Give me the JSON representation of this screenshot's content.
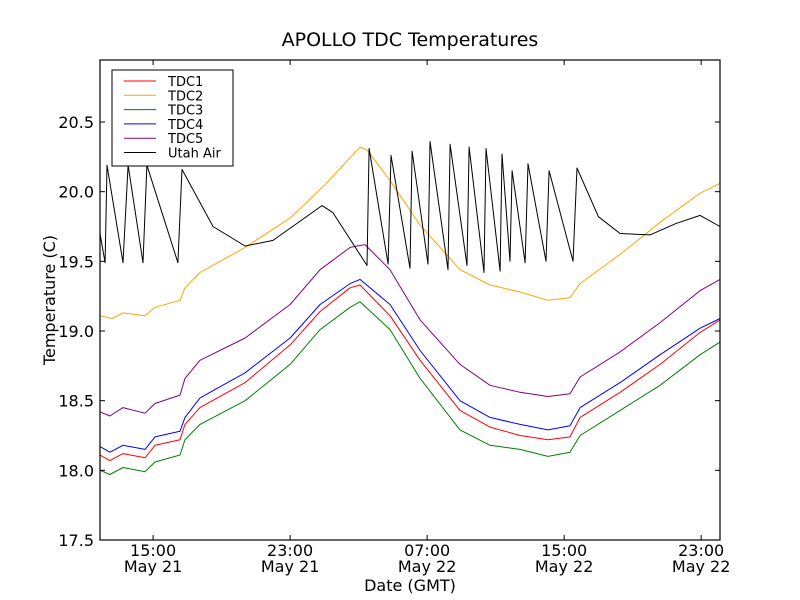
{
  "chart_data": {
    "type": "line",
    "title": "APOLLO TDC Temperatures",
    "xlabel": "Date (GMT)",
    "ylabel": "Temperature (C)",
    "x_units": "hours since 00:00 May 21 GMT",
    "xlim": [
      11.9,
      48.1
    ],
    "ylim": [
      17.5,
      20.95
    ],
    "grid": false,
    "legend_position": "top-left",
    "xticks": [
      {
        "value": 15,
        "line1": "15:00",
        "line2": "May 21"
      },
      {
        "value": 23,
        "line1": "23:00",
        "line2": "May 21"
      },
      {
        "value": 31,
        "line1": "07:00",
        "line2": "May 22"
      },
      {
        "value": 39,
        "line1": "15:00",
        "line2": "May 22"
      },
      {
        "value": 47,
        "line1": "23:00",
        "line2": "May 22"
      }
    ],
    "yticks": [
      {
        "value": 17.5,
        "label": "17.5"
      },
      {
        "value": 18.0,
        "label": "18.0"
      },
      {
        "value": 18.5,
        "label": "18.5"
      },
      {
        "value": 19.0,
        "label": "19.0"
      },
      {
        "value": 19.5,
        "label": "19.5"
      },
      {
        "value": 20.0,
        "label": "20.0"
      },
      {
        "value": 20.5,
        "label": "20.5"
      }
    ],
    "series": [
      {
        "name": "TDC1",
        "color": "#ff0000",
        "points": [
          [
            11.9,
            18.11
          ],
          [
            12.48,
            18.07
          ],
          [
            13.24,
            18.12
          ],
          [
            14.53,
            18.09
          ],
          [
            15.11,
            18.18
          ],
          [
            16.57,
            18.22
          ],
          [
            16.86,
            18.33
          ],
          [
            17.74,
            18.45
          ],
          [
            20.37,
            18.63
          ],
          [
            23.0,
            18.9
          ],
          [
            24.75,
            19.14
          ],
          [
            26.5,
            19.31
          ],
          [
            27.08,
            19.33
          ],
          [
            28.83,
            19.11
          ],
          [
            30.59,
            18.79
          ],
          [
            32.92,
            18.43
          ],
          [
            34.67,
            18.31
          ],
          [
            36.43,
            18.25
          ],
          [
            38.06,
            18.22
          ],
          [
            39.34,
            18.24
          ],
          [
            39.93,
            18.38
          ],
          [
            42.27,
            18.56
          ],
          [
            44.6,
            18.76
          ],
          [
            46.94,
            18.99
          ],
          [
            48.1,
            19.08
          ]
        ]
      },
      {
        "name": "TDC2",
        "color": "#ffa500",
        "points": [
          [
            11.9,
            19.11
          ],
          [
            12.6,
            19.09
          ],
          [
            13.24,
            19.13
          ],
          [
            14.53,
            19.11
          ],
          [
            15.11,
            19.17
          ],
          [
            16.57,
            19.22
          ],
          [
            16.86,
            19.31
          ],
          [
            17.74,
            19.42
          ],
          [
            20.37,
            19.6
          ],
          [
            23.0,
            19.81
          ],
          [
            25.04,
            20.05
          ],
          [
            27.08,
            20.32
          ],
          [
            27.49,
            20.3
          ],
          [
            28.83,
            20.08
          ],
          [
            30.59,
            19.76
          ],
          [
            32.92,
            19.44
          ],
          [
            34.67,
            19.33
          ],
          [
            36.43,
            19.28
          ],
          [
            38.06,
            19.22
          ],
          [
            39.34,
            19.24
          ],
          [
            39.93,
            19.34
          ],
          [
            42.27,
            19.55
          ],
          [
            44.6,
            19.78
          ],
          [
            46.94,
            19.99
          ],
          [
            48.1,
            20.06
          ]
        ]
      },
      {
        "name": "TDC3",
        "color": "#008000",
        "points": [
          [
            11.9,
            18.0
          ],
          [
            12.48,
            17.97
          ],
          [
            13.24,
            18.02
          ],
          [
            14.53,
            17.99
          ],
          [
            15.11,
            18.06
          ],
          [
            16.57,
            18.11
          ],
          [
            16.86,
            18.22
          ],
          [
            17.74,
            18.33
          ],
          [
            20.37,
            18.5
          ],
          [
            23.0,
            18.76
          ],
          [
            24.75,
            19.01
          ],
          [
            26.5,
            19.17
          ],
          [
            27.08,
            19.21
          ],
          [
            28.83,
            19.01
          ],
          [
            30.59,
            18.66
          ],
          [
            32.92,
            18.29
          ],
          [
            34.67,
            18.18
          ],
          [
            36.43,
            18.15
          ],
          [
            38.06,
            18.1
          ],
          [
            39.34,
            18.13
          ],
          [
            39.93,
            18.25
          ],
          [
            42.27,
            18.43
          ],
          [
            44.6,
            18.61
          ],
          [
            46.94,
            18.83
          ],
          [
            48.1,
            18.92
          ]
        ]
      },
      {
        "name": "TDC4",
        "color": "#0000ff",
        "points": [
          [
            11.9,
            18.17
          ],
          [
            12.48,
            18.13
          ],
          [
            13.24,
            18.18
          ],
          [
            14.53,
            18.15
          ],
          [
            15.11,
            18.24
          ],
          [
            16.57,
            18.28
          ],
          [
            16.86,
            18.38
          ],
          [
            17.74,
            18.52
          ],
          [
            20.37,
            18.7
          ],
          [
            23.0,
            18.95
          ],
          [
            24.75,
            19.19
          ],
          [
            26.5,
            19.34
          ],
          [
            27.08,
            19.37
          ],
          [
            28.83,
            19.19
          ],
          [
            30.59,
            18.86
          ],
          [
            32.92,
            18.5
          ],
          [
            34.67,
            18.38
          ],
          [
            36.43,
            18.33
          ],
          [
            38.06,
            18.29
          ],
          [
            39.34,
            18.32
          ],
          [
            39.93,
            18.45
          ],
          [
            42.27,
            18.63
          ],
          [
            44.6,
            18.83
          ],
          [
            46.94,
            19.02
          ],
          [
            48.1,
            19.09
          ]
        ]
      },
      {
        "name": "TDC5",
        "color": "#800080",
        "points": [
          [
            11.9,
            18.42
          ],
          [
            12.48,
            18.39
          ],
          [
            13.24,
            18.45
          ],
          [
            14.53,
            18.41
          ],
          [
            15.11,
            18.48
          ],
          [
            16.57,
            18.54
          ],
          [
            16.86,
            18.66
          ],
          [
            17.74,
            18.79
          ],
          [
            20.37,
            18.95
          ],
          [
            23.0,
            19.19
          ],
          [
            24.75,
            19.44
          ],
          [
            26.5,
            19.6
          ],
          [
            27.37,
            19.62
          ],
          [
            28.83,
            19.44
          ],
          [
            30.59,
            19.08
          ],
          [
            32.92,
            18.76
          ],
          [
            34.67,
            18.61
          ],
          [
            36.43,
            18.56
          ],
          [
            38.06,
            18.53
          ],
          [
            39.34,
            18.55
          ],
          [
            39.93,
            18.67
          ],
          [
            42.27,
            18.85
          ],
          [
            44.6,
            19.06
          ],
          [
            46.94,
            19.29
          ],
          [
            48.1,
            19.37
          ]
        ]
      },
      {
        "name": "Utah Air",
        "color": "#000000",
        "points": [
          [
            11.9,
            19.7
          ],
          [
            12.2,
            19.49
          ],
          [
            12.31,
            20.19
          ],
          [
            13.24,
            19.49
          ],
          [
            13.54,
            20.19
          ],
          [
            14.41,
            19.49
          ],
          [
            14.64,
            20.19
          ],
          [
            16.45,
            19.49
          ],
          [
            16.69,
            20.16
          ],
          [
            18.5,
            19.75
          ],
          [
            20.37,
            19.61
          ],
          [
            22.0,
            19.65
          ],
          [
            24.86,
            19.9
          ],
          [
            25.5,
            19.85
          ],
          [
            27.49,
            19.47
          ],
          [
            27.61,
            20.31
          ],
          [
            28.72,
            19.48
          ],
          [
            28.89,
            20.26
          ],
          [
            30.0,
            19.45
          ],
          [
            30.12,
            20.29
          ],
          [
            31.05,
            19.48
          ],
          [
            31.17,
            20.36
          ],
          [
            32.22,
            19.44
          ],
          [
            32.34,
            20.34
          ],
          [
            33.33,
            19.47
          ],
          [
            33.45,
            20.32
          ],
          [
            34.32,
            19.42
          ],
          [
            34.44,
            20.31
          ],
          [
            35.26,
            19.43
          ],
          [
            35.37,
            20.27
          ],
          [
            35.84,
            19.5
          ],
          [
            35.96,
            20.15
          ],
          [
            36.72,
            19.49
          ],
          [
            36.89,
            20.2
          ],
          [
            37.94,
            19.5
          ],
          [
            38.12,
            20.15
          ],
          [
            39.52,
            19.5
          ],
          [
            39.75,
            20.17
          ],
          [
            41.0,
            19.82
          ],
          [
            42.27,
            19.7
          ],
          [
            44.02,
            19.69
          ],
          [
            45.5,
            19.77
          ],
          [
            46.94,
            19.83
          ],
          [
            48.1,
            19.75
          ]
        ]
      }
    ]
  }
}
